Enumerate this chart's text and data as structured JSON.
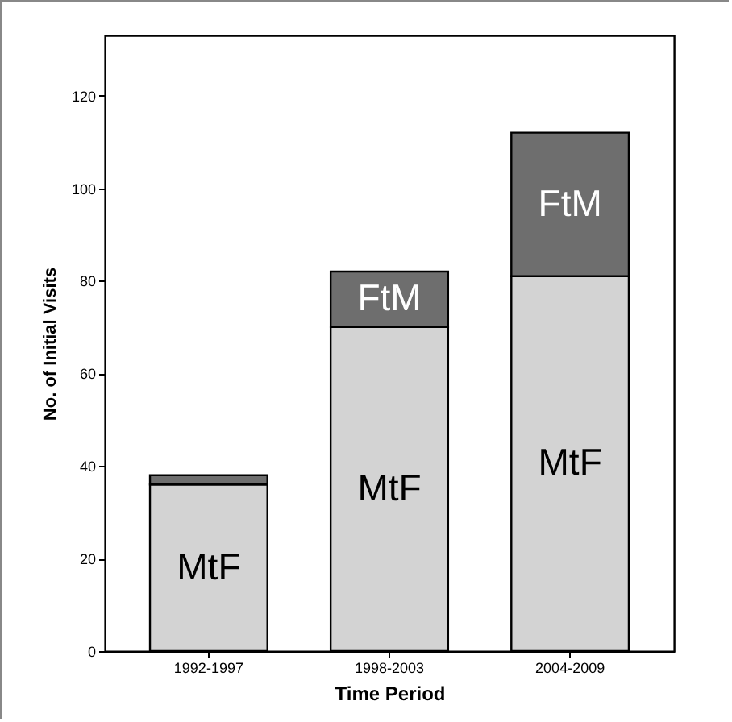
{
  "chart_data": {
    "type": "bar",
    "stacked": true,
    "xlabel": "Time Period",
    "ylabel": "No. of Initial Visits",
    "categories": [
      "1992-1997",
      "1998-2003",
      "2004-2009"
    ],
    "series": [
      {
        "name": "MtF",
        "color": "#d3d3d3",
        "values": [
          36,
          70,
          81
        ]
      },
      {
        "name": "FtM",
        "color": "#6e6e6e",
        "values": [
          2,
          12,
          31
        ]
      }
    ],
    "ylim": [
      0,
      133
    ],
    "yticks": [
      0,
      20,
      40,
      60,
      80,
      100,
      120
    ],
    "grid": false,
    "legend": false
  }
}
